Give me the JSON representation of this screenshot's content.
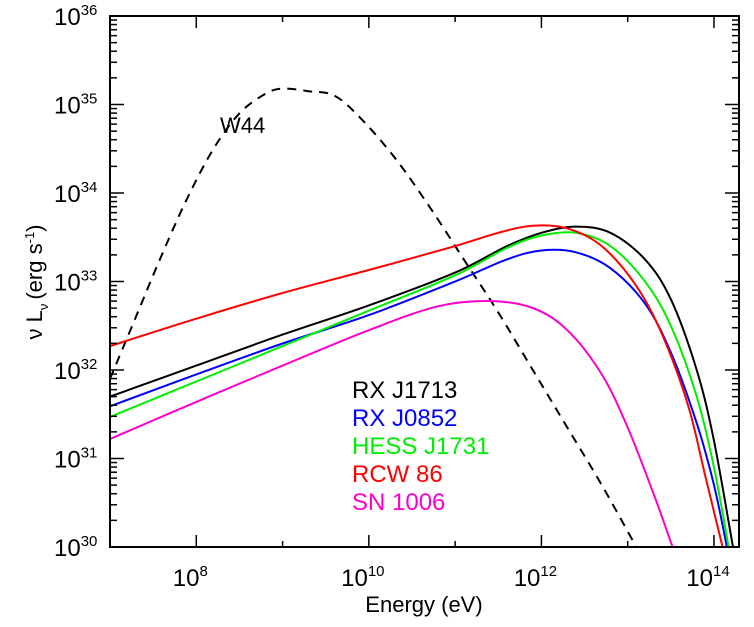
{
  "chart_data": {
    "type": "line",
    "title": "",
    "xlabel": "Energy (eV)",
    "ylabel": {
      "main": "ν L",
      "sub": "ν",
      "unit_pre": "(erg s",
      "unit_sup": "-1",
      "unit_post": ")"
    },
    "xscale": "log",
    "yscale": "log",
    "xlim_log10": [
      7.0,
      14.29
    ],
    "ylim_log10": [
      30,
      36
    ],
    "x_ticks": [
      {
        "base": "10",
        "exp": "8",
        "log": 8
      },
      {
        "base": "10",
        "exp": "10",
        "log": 10
      },
      {
        "base": "10",
        "exp": "12",
        "log": 12
      },
      {
        "base": "10",
        "exp": "14",
        "log": 14
      }
    ],
    "y_ticks": [
      {
        "base": "10",
        "exp": "30",
        "log": 30
      },
      {
        "base": "10",
        "exp": "31",
        "log": 31
      },
      {
        "base": "10",
        "exp": "32",
        "log": 32
      },
      {
        "base": "10",
        "exp": "33",
        "log": 33
      },
      {
        "base": "10",
        "exp": "34",
        "log": 34
      },
      {
        "base": "10",
        "exp": "35",
        "log": 35
      },
      {
        "base": "10",
        "exp": "36",
        "log": 36
      }
    ],
    "grid": false,
    "legend_placement": "lower-center",
    "annotations": [
      {
        "text": "W44",
        "near_series": "W44"
      }
    ],
    "series": [
      {
        "name": "W44",
        "color": "#000000",
        "style": "dashed",
        "log_x": [
          7.0,
          7.3,
          7.6,
          7.9,
          8.2,
          8.5,
          8.8,
          9.0,
          9.3,
          9.6,
          9.9,
          10.3,
          10.7,
          11.1,
          11.5,
          11.9,
          12.3,
          12.7,
          13.1
        ],
        "log_y": [
          31.9,
          32.6,
          33.3,
          33.95,
          34.5,
          34.9,
          35.12,
          35.18,
          35.15,
          35.1,
          34.85,
          34.4,
          33.85,
          33.25,
          32.65,
          32.0,
          31.35,
          30.7,
          30.0
        ]
      },
      {
        "name": "RX J1713",
        "color": "#000000",
        "style": "solid",
        "log_x": [
          7.0,
          8.0,
          9.0,
          10.0,
          11.0,
          11.6,
          12.0,
          12.4,
          12.8,
          13.2,
          13.5,
          13.8,
          14.0,
          14.22
        ],
        "log_y": [
          31.7,
          32.05,
          32.4,
          32.73,
          33.1,
          33.4,
          33.55,
          33.62,
          33.55,
          33.25,
          32.8,
          32.0,
          31.2,
          30.0
        ]
      },
      {
        "name": "RX J0852",
        "color": "#0000ff",
        "style": "solid",
        "log_x": [
          7.0,
          8.0,
          9.0,
          10.0,
          11.0,
          11.6,
          12.0,
          12.4,
          12.8,
          13.2,
          13.5,
          13.8,
          14.0,
          14.15
        ],
        "log_y": [
          31.59,
          31.95,
          32.3,
          32.62,
          33.0,
          33.25,
          33.35,
          33.33,
          33.15,
          32.75,
          32.2,
          31.4,
          30.7,
          30.0
        ]
      },
      {
        "name": "HESS J1731",
        "color": "#00ee00",
        "style": "solid",
        "log_x": [
          7.0,
          8.0,
          9.0,
          10.0,
          11.0,
          11.6,
          12.0,
          12.4,
          12.8,
          13.2,
          13.5,
          13.8,
          14.0,
          14.17
        ],
        "log_y": [
          31.47,
          31.87,
          32.27,
          32.67,
          33.07,
          33.38,
          33.52,
          33.55,
          33.4,
          33.0,
          32.5,
          31.7,
          30.9,
          30.0
        ]
      },
      {
        "name": "RCW 86",
        "color": "#ff0000",
        "style": "solid",
        "log_x": [
          7.0,
          8.0,
          9.0,
          10.0,
          11.0,
          11.5,
          11.9,
          12.3,
          12.7,
          13.1,
          13.4,
          13.7,
          13.9,
          14.1
        ],
        "log_y": [
          32.27,
          32.58,
          32.87,
          33.13,
          33.4,
          33.55,
          33.63,
          33.6,
          33.4,
          32.95,
          32.4,
          31.6,
          30.8,
          30.0
        ]
      },
      {
        "name": "SN 1006",
        "color": "#ff00cc",
        "style": "solid",
        "log_x": [
          7.0,
          8.0,
          9.0,
          10.0,
          10.8,
          11.4,
          11.9,
          12.3,
          12.7,
          13.0,
          13.3,
          13.52
        ],
        "log_y": [
          31.22,
          31.64,
          32.05,
          32.45,
          32.72,
          32.78,
          32.7,
          32.45,
          31.95,
          31.35,
          30.6,
          30.0
        ]
      }
    ]
  }
}
